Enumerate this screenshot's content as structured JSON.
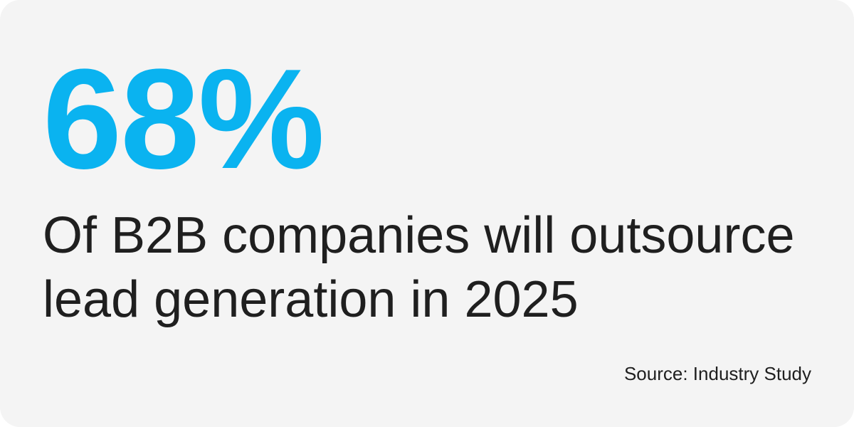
{
  "stat": {
    "value": "68%",
    "color": "#0ab3f0"
  },
  "description": {
    "line1": "Of B2B companies will outsource",
    "line2": "lead generation in 2025"
  },
  "source": "Source: Industry Study",
  "colors": {
    "background": "#f4f4f4",
    "text": "#1f1f1f"
  }
}
